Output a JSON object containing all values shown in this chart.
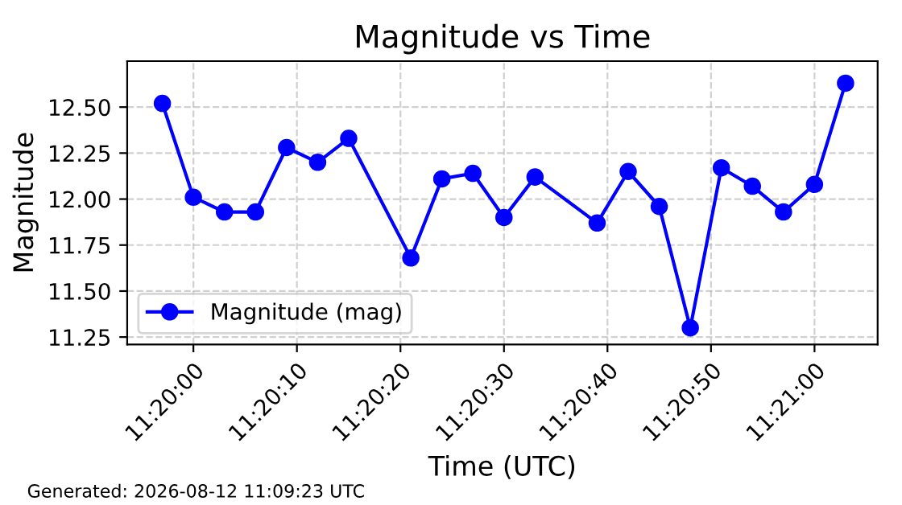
{
  "chart_data": {
    "type": "line",
    "title": "Magnitude vs Time",
    "xlabel": "Time (UTC)",
    "ylabel": "Magnitude",
    "annotations": [
      "Generated: 2026-08-12 11:09:23 UTC"
    ],
    "x": [
      11.3325,
      11.333333,
      11.334167,
      11.335,
      11.335833,
      11.336667,
      11.3375,
      11.339167,
      11.34,
      11.340833,
      11.341667,
      11.3425,
      11.344167,
      11.345,
      11.345833,
      11.346667,
      11.3475,
      11.348333,
      11.349167,
      11.35,
      11.350833
    ],
    "series": [
      {
        "name": "Magnitude (mag)",
        "color": "#0000ff",
        "values": [
          12.52,
          12.01,
          11.93,
          11.93,
          12.28,
          12.2,
          12.33,
          11.68,
          12.11,
          12.14,
          11.9,
          12.12,
          11.87,
          12.15,
          11.96,
          11.3,
          12.17,
          12.07,
          11.93,
          12.08,
          12.63
        ]
      }
    ],
    "xlim": [
      11.331556,
      11.351694
    ],
    "ylim": [
      11.21,
      12.75
    ],
    "xticks": [
      {
        "value": 11.333333,
        "label": "11:20:00"
      },
      {
        "value": 11.336111,
        "label": "11:20:10"
      },
      {
        "value": 11.338889,
        "label": "11:20:20"
      },
      {
        "value": 11.341667,
        "label": "11:20:30"
      },
      {
        "value": 11.344444,
        "label": "11:20:40"
      },
      {
        "value": 11.347222,
        "label": "11:20:50"
      },
      {
        "value": 11.35,
        "label": "11:21:00"
      }
    ],
    "yticks": [
      {
        "value": 11.25,
        "label": "11.25"
      },
      {
        "value": 11.5,
        "label": "11.50"
      },
      {
        "value": 11.75,
        "label": "11.75"
      },
      {
        "value": 12.0,
        "label": "12.00"
      },
      {
        "value": 12.25,
        "label": "12.25"
      },
      {
        "value": 12.5,
        "label": "12.50"
      }
    ],
    "grid": true,
    "legend": "bottom left",
    "marker": "circle",
    "line_style": "solid"
  }
}
